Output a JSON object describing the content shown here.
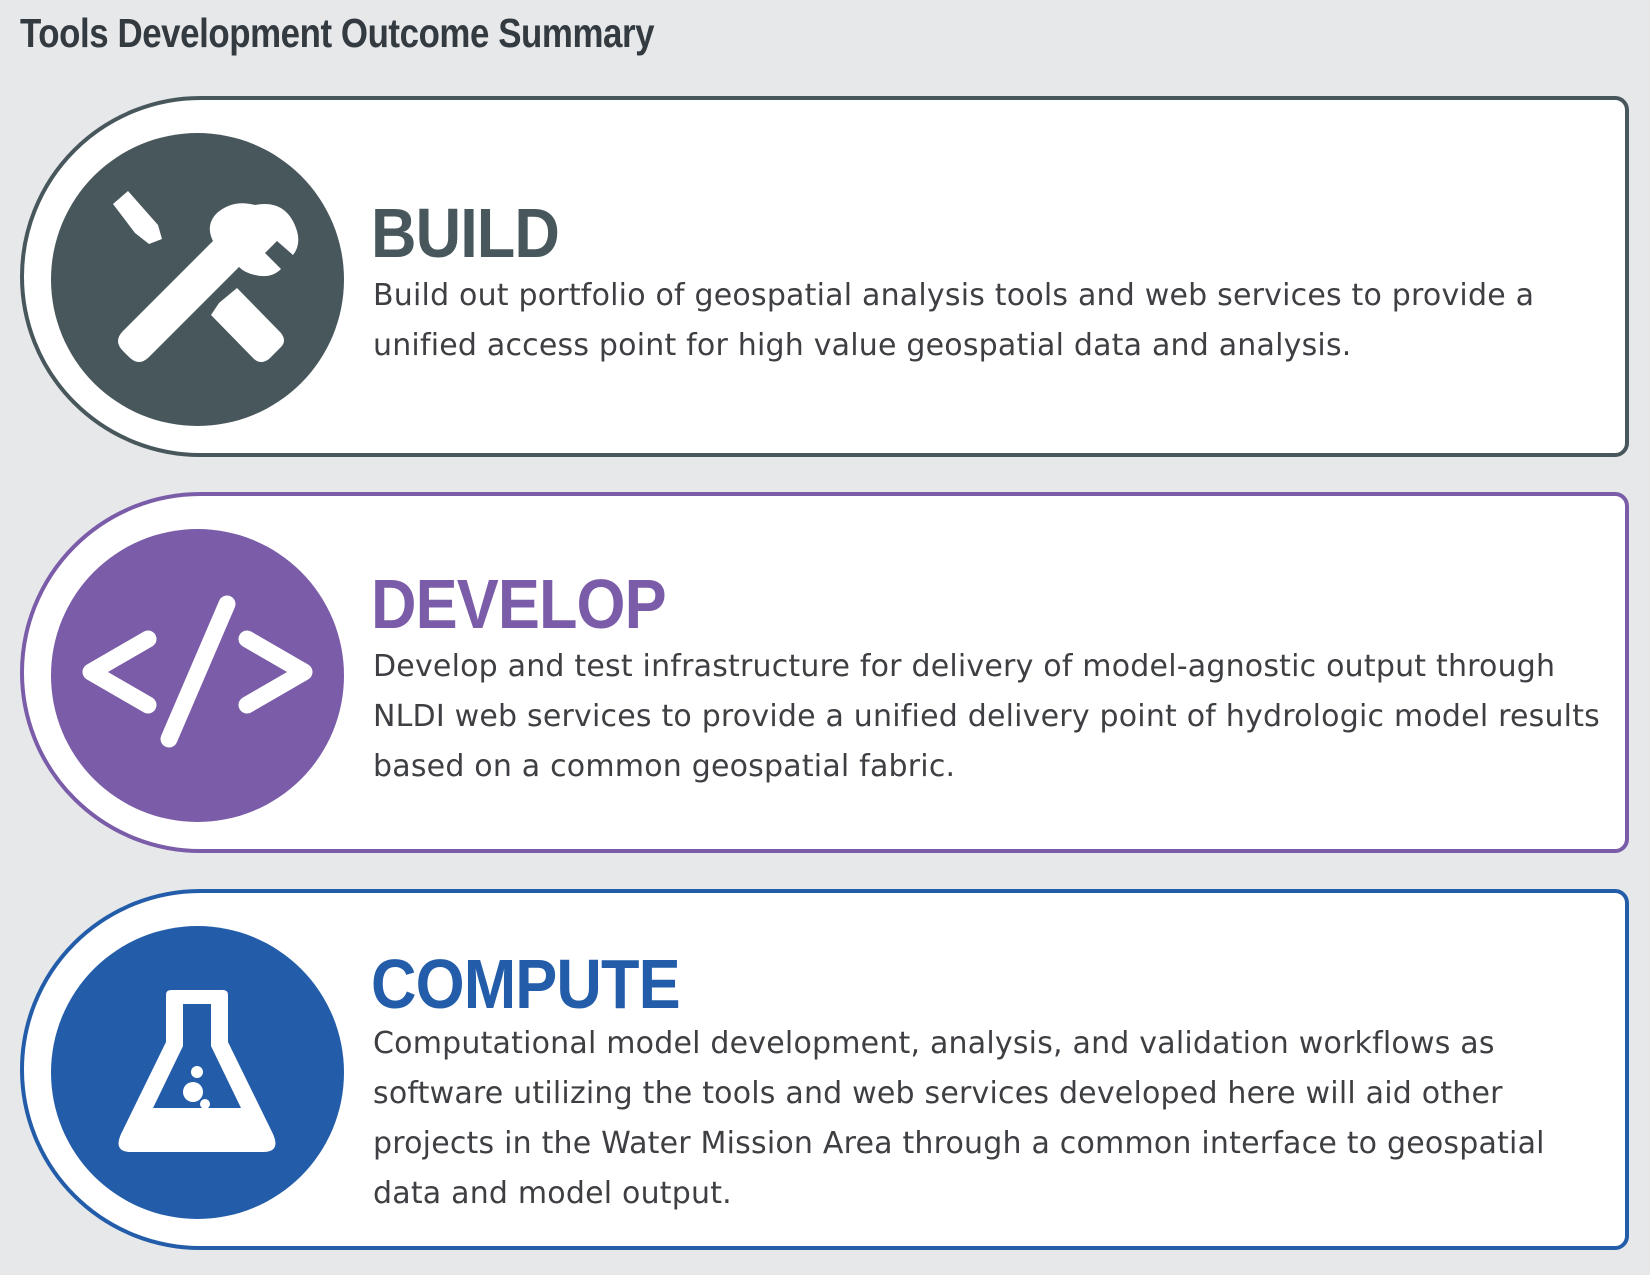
{
  "page": {
    "title": "Tools Development Outcome Summary"
  },
  "colors": {
    "background": "#e7e8ea",
    "build": "#48575b",
    "develop": "#7a5ca8",
    "compute": "#235da9",
    "text": "#3d3f42"
  },
  "cards": [
    {
      "heading": "BUILD",
      "description": "Build out portfolio of geospatial analysis tools and web services to provide a unified access point for high value geospatial data and analysis.",
      "icon": "wrench-screwdriver-icon"
    },
    {
      "heading": "DEVELOP",
      "description": "Develop and test infrastructure for delivery of model-agnostic output through NLDI web services to provide a unified delivery point of hydrologic model results based on a common geospatial fabric.",
      "icon": "code-brackets-icon"
    },
    {
      "heading": "COMPUTE",
      "description": "Computational model development, analysis, and validation workflows as software utilizing the tools and web services developed here will aid other projects in the Water Mission Area through a common interface to geospatial data and model output.",
      "icon": "flask-icon"
    }
  ]
}
